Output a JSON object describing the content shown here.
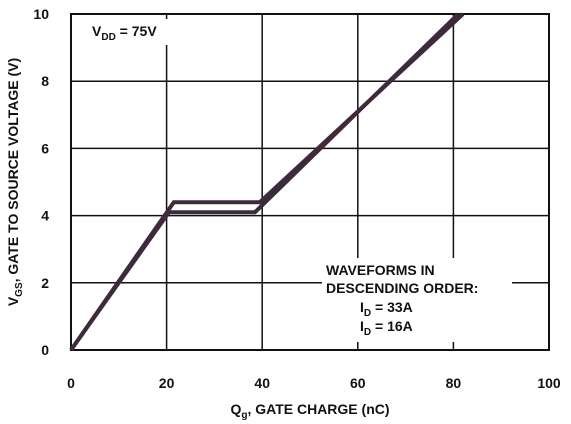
{
  "chart_data": {
    "type": "line",
    "xlabel": {
      "main": "Q",
      "sub": "g",
      "rest": ", GATE CHARGE (nC)"
    },
    "ylabel": {
      "main": "V",
      "sub": "GS",
      "rest": ", GATE TO SOURCE VOLTAGE (V)"
    },
    "xlim": [
      0,
      100
    ],
    "ylim": [
      0,
      10
    ],
    "x_ticks": [
      "0",
      "20",
      "40",
      "60",
      "80",
      "100"
    ],
    "y_ticks": [
      "0",
      "2",
      "4",
      "6",
      "8",
      "10"
    ],
    "grid": true,
    "vdd_label": {
      "main": "V",
      "sub": "DD",
      "rest": " = 75V"
    },
    "legend_lines": [
      "WAVEFORMS IN",
      "DESCENDING ORDER:"
    ],
    "legend_entries": [
      {
        "main": "I",
        "sub": "D",
        "rest": " = 33A"
      },
      {
        "main": "I",
        "sub": "D",
        "rest": " = 16A"
      }
    ],
    "line_color": "#3d2b3d",
    "series": [
      {
        "name": "I_D = 33A",
        "x": [
          0,
          21.5,
          39.5,
          82
        ],
        "y": [
          0,
          4.4,
          4.4,
          10
        ]
      },
      {
        "name": "I_D = 16A",
        "x": [
          0,
          20.5,
          38.5,
          81
        ],
        "y": [
          0,
          4.1,
          4.1,
          10
        ]
      }
    ]
  }
}
